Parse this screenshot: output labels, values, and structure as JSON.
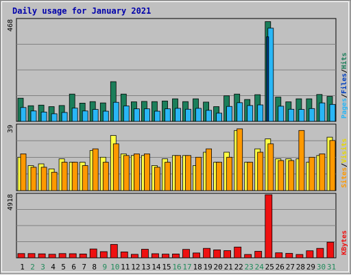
{
  "chart_data": {
    "type": "bar",
    "title": "Daily usage for January 2021",
    "categories": [
      "1",
      "2",
      "3",
      "4",
      "5",
      "6",
      "7",
      "8",
      "9",
      "10",
      "11",
      "12",
      "13",
      "14",
      "15",
      "16",
      "17",
      "18",
      "19",
      "20",
      "21",
      "22",
      "23",
      "24",
      "25",
      "26",
      "27",
      "28",
      "29",
      "30",
      "31"
    ],
    "weekend_days": [
      2,
      3,
      9,
      10,
      16,
      17,
      23,
      24,
      30,
      31
    ],
    "panels": [
      {
        "id": "hits-files-pages",
        "ymax_label": "468",
        "ymax": 468,
        "legend": [
          "Pages",
          "/",
          "Files",
          "/",
          "Hits"
        ],
        "series": [
          {
            "name": "Hits",
            "color": "#1b7e5a",
            "values": [
              107,
              72,
              75,
              68,
              73,
              126,
              84,
              91,
              85,
              183,
              126,
              90,
              92,
              91,
              94,
              104,
              91,
              104,
              89,
              68,
              118,
              126,
              101,
              123,
              460,
              112,
              90,
              104,
              104,
              124,
              115
            ]
          },
          {
            "name": "Files",
            "color": "#29b6f6",
            "values": [
              64,
              48,
              43,
              35,
              41,
              61,
              48,
              55,
              47,
              88,
              71,
              58,
              58,
              47,
              58,
              60,
              56,
              60,
              51,
              38,
              69,
              86,
              73,
              76,
              430,
              70,
              56,
              55,
              59,
              85,
              78
            ]
          },
          {
            "name": "Pages",
            "color": "#003c80",
            "values": [
              0,
              0,
              0,
              0,
              0,
              0,
              0,
              0,
              0,
              0,
              0,
              0,
              0,
              0,
              0,
              0,
              0,
              0,
              0,
              0,
              0,
              0,
              0,
              0,
              390,
              0,
              0,
              0,
              0,
              0,
              0
            ]
          }
        ]
      },
      {
        "id": "visits-sites",
        "ymax_label": "39",
        "ymax": 39,
        "legend": [
          "Sites",
          "/",
          "Visits"
        ],
        "series": [
          {
            "name": "Visits",
            "color": "#ffff44",
            "values": [
              20,
              15,
              16,
              13,
              19,
              17,
              17,
              24,
              20,
              33,
              22,
              21,
              21,
              15,
              19,
              21,
              21,
              15,
              23,
              17,
              23,
              36,
              17,
              25,
              31,
              19,
              19,
              19,
              17,
              21,
              32
            ]
          },
          {
            "name": "Sites",
            "color": "#ff9900",
            "values": [
              22,
              14,
              14,
              11,
              17,
              17,
              15,
              25,
              17,
              28,
              21,
              22,
              22,
              14,
              17,
              21,
              21,
              20,
              25,
              17,
              20,
              37,
              17,
              23,
              28,
              18,
              18,
              36,
              20,
              22,
              30
            ]
          }
        ]
      },
      {
        "id": "kbytes",
        "ymax_label": "4918",
        "ymax": 4918,
        "legend": [
          "KBytes"
        ],
        "series": [
          {
            "name": "KBytes",
            "color": "#ee1111",
            "values": [
              330,
              330,
              310,
              280,
              330,
              320,
              300,
              690,
              480,
              1040,
              460,
              270,
              670,
              320,
              290,
              300,
              660,
              380,
              740,
              620,
              560,
              840,
              260,
              510,
              4918,
              390,
              350,
              260,
              550,
              740,
              1220
            ]
          }
        ]
      }
    ]
  }
}
